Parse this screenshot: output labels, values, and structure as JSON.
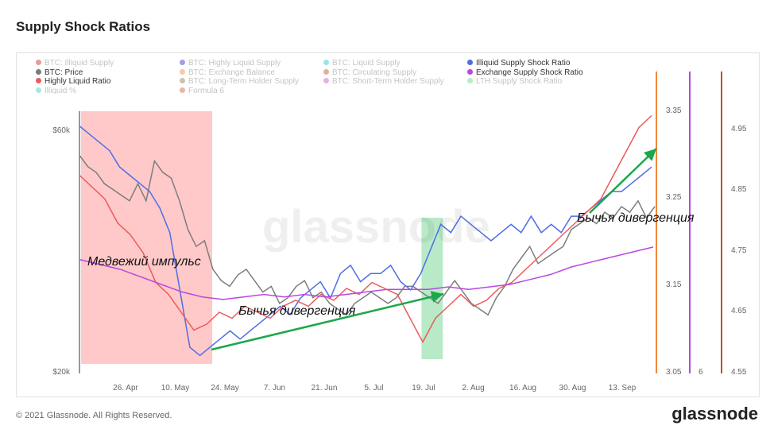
{
  "title": "Supply Shock Ratios",
  "footer": "© 2021 Glassnode. All Rights Reserved.",
  "brand": "glassnode",
  "watermark": "glassnode",
  "legend": [
    {
      "label": "BTC: Illiquid Supply",
      "color": "#cc2222",
      "active": false
    },
    {
      "label": "BTC: Highly Liquid Supply",
      "color": "#2c2cb8",
      "active": false
    },
    {
      "label": "BTC: Liquid Supply",
      "color": "#22c4c4",
      "active": false
    },
    {
      "label": "Illiquid Supply Shock Ratio",
      "color": "#4f6de6",
      "active": true
    },
    {
      "label": "BTC: Price",
      "color": "#7a7a7a",
      "active": true
    },
    {
      "label": "BTC: Exchange Balance",
      "color": "#f0883a",
      "active": false
    },
    {
      "label": "BTC: Circulating Supply",
      "color": "#c0501e",
      "active": false
    },
    {
      "label": "Exchange Supply Shock Ratio",
      "color": "#b848e0",
      "active": true
    },
    {
      "label": "Highly Liquid Ratio",
      "color": "#ec5a5a",
      "active": true
    },
    {
      "label": "BTC: Long-Term Holder Supply",
      "color": "#8a7a40",
      "active": false
    },
    {
      "label": "BTC: Short-Term Holder Supply",
      "color": "#c850c0",
      "active": false
    },
    {
      "label": "LTH Supply Shock Ratio",
      "color": "#58d870",
      "active": false
    },
    {
      "label": "Illiquid %",
      "color": "#3ec8b8",
      "active": false
    },
    {
      "label": "Formula 6",
      "color": "#c8603a",
      "active": false
    }
  ],
  "annotations": {
    "bear": "Медвежий импульс",
    "bull1": "Бычья дивергенция",
    "bull2": "Бычья дивергенция"
  },
  "chart_data": {
    "type": "line",
    "x_ticks": [
      "26. Apr",
      "10. May",
      "24. May",
      "7. Jun",
      "21. Jun",
      "5. Jul",
      "19. Jul",
      "2. Aug",
      "16. Aug",
      "30. Aug",
      "13. Sep"
    ],
    "y_left_ticks": [
      "$60k",
      "$20k"
    ],
    "y_right1_ticks": [
      "3.35",
      "3.25",
      "3.15",
      "3.05"
    ],
    "y_right2_label": "6",
    "y_right3_ticks": [
      "4.95",
      "4.85",
      "4.75",
      "4.65",
      "4.55"
    ],
    "shaded_regions": [
      {
        "label": "bear",
        "color": "#ff9d9d",
        "opacity": 0.55,
        "from": "2021-04-15",
        "to": "2021-05-22"
      },
      {
        "label": "bull",
        "color": "#62d084",
        "opacity": 0.45,
        "from": "2021-07-20",
        "to": "2021-07-26"
      }
    ],
    "series": [
      {
        "name": "BTC: Price",
        "color": "#7d7d7d",
        "values": [
          58,
          56,
          55,
          53,
          52,
          51,
          50,
          53,
          50,
          57,
          55,
          54,
          50,
          45,
          42,
          43,
          38,
          36,
          35,
          37,
          38,
          36,
          34,
          35,
          32,
          33,
          35,
          36,
          33,
          34,
          32,
          31,
          30,
          32,
          33,
          34,
          33,
          32,
          33,
          35,
          35,
          34,
          33,
          32,
          34,
          36,
          34,
          32,
          31,
          30,
          33,
          35,
          38,
          40,
          42,
          39,
          40,
          41,
          42,
          45,
          46,
          47,
          46,
          48,
          47,
          49,
          48,
          50,
          47,
          49
        ]
      },
      {
        "name": "Illiquid Supply Shock Ratio",
        "color": "#4f6de6",
        "values": [
          3.35,
          3.34,
          3.33,
          3.32,
          3.3,
          3.29,
          3.28,
          3.27,
          3.25,
          3.22,
          3.15,
          3.08,
          3.07,
          3.08,
          3.09,
          3.1,
          3.09,
          3.1,
          3.11,
          3.12,
          3.13,
          3.12,
          3.14,
          3.15,
          3.16,
          3.14,
          3.17,
          3.18,
          3.16,
          3.17,
          3.17,
          3.18,
          3.16,
          3.15,
          3.17,
          3.2,
          3.23,
          3.22,
          3.24,
          3.23,
          3.22,
          3.21,
          3.22,
          3.23,
          3.22,
          3.24,
          3.22,
          3.23,
          3.22,
          3.24,
          3.24,
          3.25,
          3.26,
          3.27,
          3.27,
          3.28,
          3.29,
          3.3
        ]
      },
      {
        "name": "Highly Liquid Ratio",
        "color": "#ec5a5a",
        "values": [
          4.88,
          4.86,
          4.84,
          4.8,
          4.78,
          4.75,
          4.7,
          4.68,
          4.65,
          4.62,
          4.63,
          4.65,
          4.64,
          4.66,
          4.65,
          4.64,
          4.66,
          4.67,
          4.66,
          4.68,
          4.67,
          4.69,
          4.68,
          4.7,
          4.69,
          4.68,
          4.64,
          4.6,
          4.64,
          4.66,
          4.68,
          4.66,
          4.67,
          4.69,
          4.7,
          4.72,
          4.74,
          4.76,
          4.78,
          4.8,
          4.82,
          4.84,
          4.88,
          4.92,
          4.96,
          4.98
        ]
      },
      {
        "name": "Exchange Supply Shock Ratio",
        "color": "#b848e0",
        "values": [
          6.0,
          5.98,
          5.96,
          5.93,
          5.9,
          5.87,
          5.85,
          5.84,
          5.85,
          5.86,
          5.85,
          5.86,
          5.85,
          5.86,
          5.87,
          5.88,
          5.88,
          5.88,
          5.89,
          5.88,
          5.89,
          5.9,
          5.92,
          5.94,
          5.97,
          5.99,
          6.01,
          6.03,
          6.05
        ]
      }
    ]
  }
}
